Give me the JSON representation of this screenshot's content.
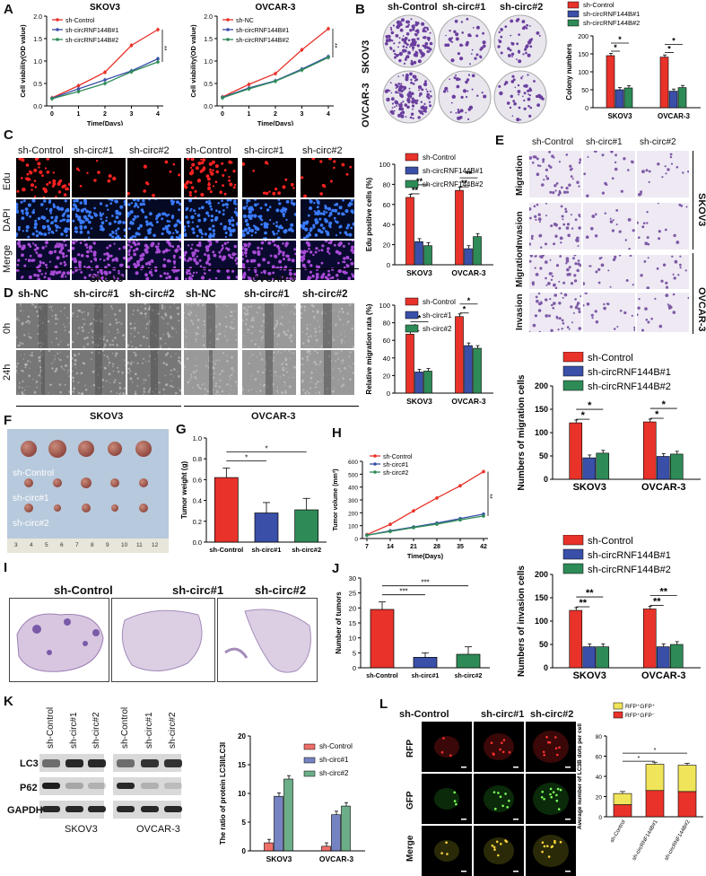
{
  "panels": {
    "A": "A",
    "B": "B",
    "C": "C",
    "D": "D",
    "E": "E",
    "F": "F",
    "G": "G",
    "H": "H",
    "I": "I",
    "J": "J",
    "K": "K",
    "L": "L"
  },
  "colors": {
    "red": "#e8322a",
    "blue": "#3a4fa8",
    "green": "#2e8b57",
    "yellow": "#f0e45a",
    "purple": "#6a3e9e"
  },
  "chart_data": [
    {
      "id": "A1",
      "type": "line",
      "title": "SKOV3",
      "xlabel": "Time(Days)",
      "ylabel": "Cell viability(OD value)",
      "x": [
        0,
        1,
        2,
        3,
        4
      ],
      "ylim": [
        0,
        2.0
      ],
      "yticks": [
        "0.0",
        "0.5",
        "1.0",
        "1.5",
        "2.0"
      ],
      "series": [
        {
          "name": "sh-Control",
          "values": [
            0.18,
            0.45,
            0.75,
            1.35,
            1.7
          ]
        },
        {
          "name": "sh-circRNF144B#1",
          "values": [
            0.17,
            0.38,
            0.58,
            0.78,
            1.05
          ]
        },
        {
          "name": "sh-circRNF144B#2",
          "values": [
            0.16,
            0.32,
            0.5,
            0.76,
            0.98
          ]
        }
      ],
      "annotation": "**"
    },
    {
      "id": "A2",
      "type": "line",
      "title": "OVCAR-3",
      "xlabel": "Time(Days)",
      "ylabel": "Cell viability(OD value)",
      "x": [
        0,
        1,
        2,
        3,
        4
      ],
      "ylim": [
        0,
        2.0
      ],
      "yticks": [
        "0.0",
        "0.5",
        "1.0",
        "1.5",
        "2.0"
      ],
      "series": [
        {
          "name": "sh-NC",
          "values": [
            0.2,
            0.48,
            0.72,
            1.25,
            1.72
          ]
        },
        {
          "name": "sh-circRNF144B#1",
          "values": [
            0.19,
            0.4,
            0.56,
            0.82,
            1.1
          ]
        },
        {
          "name": "sh-circRNF144B#2",
          "values": [
            0.18,
            0.38,
            0.55,
            0.8,
            1.08
          ]
        }
      ],
      "annotation": "**"
    },
    {
      "id": "B",
      "type": "bar",
      "ylabel": "Colony numbers",
      "categories": [
        "SKOV3",
        "OVCAR-3"
      ],
      "ylim": [
        0,
        200
      ],
      "yticks": [
        "0",
        "50",
        "100",
        "150",
        "200"
      ],
      "series": [
        {
          "name": "sh-Control",
          "values": [
            145,
            141
          ]
        },
        {
          "name": "sh-circRNF144B#1",
          "values": [
            50,
            46
          ]
        },
        {
          "name": "sh-circRNF144B#2",
          "values": [
            55,
            56
          ]
        }
      ],
      "sig": [
        "*",
        "*"
      ]
    },
    {
      "id": "C",
      "type": "bar",
      "ylabel": "Edu positive cells (%)",
      "categories": [
        "SKOV3",
        "OVCAR-3"
      ],
      "ylim": [
        0,
        100
      ],
      "yticks": [
        "0",
        "20",
        "40",
        "60",
        "80",
        "100"
      ],
      "series": [
        {
          "name": "sh-Control",
          "values": [
            67,
            74
          ]
        },
        {
          "name": "sh-circRNF144B#1",
          "values": [
            23,
            16
          ]
        },
        {
          "name": "sh-circRNF144B#2",
          "values": [
            19,
            28
          ]
        }
      ],
      "sig": [
        "**",
        "**"
      ]
    },
    {
      "id": "D",
      "type": "bar",
      "ylabel": "Relative migration rata (%)",
      "categories": [
        "SKOV3",
        "OVCAR-3"
      ],
      "ylim": [
        0,
        100
      ],
      "yticks": [
        "0",
        "20",
        "40",
        "60",
        "80",
        "100"
      ],
      "series": [
        {
          "name": "sh-Control",
          "values": [
            67,
            87
          ]
        },
        {
          "name": "sh-circ#1",
          "values": [
            24,
            54
          ]
        },
        {
          "name": "sh-circ#2",
          "values": [
            25,
            51
          ]
        }
      ],
      "sig": [
        "*",
        "*"
      ]
    },
    {
      "id": "E1",
      "type": "bar",
      "ylabel": "Numbers of migration cells",
      "categories": [
        "SKOV3",
        "OVCAR-3"
      ],
      "ylim": [
        0,
        200
      ],
      "yticks": [
        "0",
        "50",
        "100",
        "150",
        "200"
      ],
      "series": [
        {
          "name": "sh-Control",
          "values": [
            121,
            123
          ]
        },
        {
          "name": "sh-circRNF144B#1",
          "values": [
            46,
            49
          ]
        },
        {
          "name": "sh-circRNF144B#2",
          "values": [
            56,
            54
          ]
        }
      ],
      "sig": [
        "*",
        "*"
      ]
    },
    {
      "id": "E2",
      "type": "bar",
      "ylabel": "Numbers of invasion cells",
      "categories": [
        "SKOV3",
        "OVCAR-3"
      ],
      "ylim": [
        0,
        200
      ],
      "yticks": [
        "0",
        "50",
        "100",
        "150",
        "200"
      ],
      "series": [
        {
          "name": "sh-Control",
          "values": [
            123,
            126
          ]
        },
        {
          "name": "sh-circRNF144B#1",
          "values": [
            45,
            45
          ]
        },
        {
          "name": "sh-circRNF144B#2",
          "values": [
            45,
            50
          ]
        }
      ],
      "sig": [
        "**",
        "**"
      ]
    },
    {
      "id": "G",
      "type": "bar",
      "ylabel": "Tumor weight (g)",
      "categories": [
        "sh-Control",
        "sh-circ#1",
        "sh-circ#2"
      ],
      "ylim": [
        0,
        1.0
      ],
      "yticks": [
        "0.0",
        "0.2",
        "0.4",
        "0.6",
        "0.8",
        "1.0"
      ],
      "values": [
        0.62,
        0.28,
        0.31
      ],
      "errors": [
        0.09,
        0.1,
        0.11
      ],
      "sig": [
        "*",
        "*"
      ]
    },
    {
      "id": "H",
      "type": "line",
      "ylabel": "Tumor volume (mm³)",
      "xlabel": "Time(Days)",
      "x": [
        7,
        14,
        21,
        28,
        35,
        42
      ],
      "ylim": [
        0,
        600
      ],
      "yticks": [
        "0",
        "100",
        "200",
        "300",
        "400",
        "500",
        "600"
      ],
      "series": [
        {
          "name": "sh-Control",
          "values": [
            30,
            110,
            215,
            315,
            410,
            520
          ]
        },
        {
          "name": "sh-circ#1",
          "values": [
            25,
            60,
            90,
            120,
            155,
            190
          ]
        },
        {
          "name": "sh-circ#2",
          "values": [
            25,
            55,
            85,
            112,
            145,
            175
          ]
        }
      ],
      "annotation": "**"
    },
    {
      "id": "J",
      "type": "bar",
      "ylabel": "Number of tumors",
      "categories": [
        "sh-Control",
        "sh-circ#1",
        "sh-circ#2"
      ],
      "ylim": [
        0,
        30
      ],
      "yticks": [
        "0",
        "5",
        "10",
        "15",
        "20",
        "25",
        "30"
      ],
      "values": [
        19.5,
        3.5,
        4.5
      ],
      "errors": [
        2.5,
        1.5,
        2.5
      ],
      "sig": [
        "***",
        "***"
      ]
    },
    {
      "id": "K",
      "type": "bar",
      "ylabel": "The ratio of protein LC3II/LC3I",
      "categories": [
        "SKOV3",
        "OVCAR-3"
      ],
      "ylim": [
        0,
        20
      ],
      "yticks": [
        "0",
        "5",
        "10",
        "15",
        "20"
      ],
      "series": [
        {
          "name": "sh-Control",
          "values": [
            1.4,
            0.8
          ]
        },
        {
          "name": "sh-circ#1",
          "values": [
            9.5,
            6.3
          ]
        },
        {
          "name": "sh-circ#2",
          "values": [
            12.5,
            7.8
          ]
        }
      ]
    },
    {
      "id": "L",
      "type": "bar",
      "ylabel": "Average number of LC3B dots per cell",
      "categories": [
        "sh-Control",
        "sh-circRNF144B#1",
        "sh-circRNF144B#2"
      ],
      "ylim": [
        0,
        80
      ],
      "yticks": [
        "0",
        "20",
        "40",
        "60",
        "80"
      ],
      "series": [
        {
          "name": "RFP⁺GFP⁻",
          "values": [
            12,
            26,
            25
          ]
        },
        {
          "name": "RFP⁺GFP⁺",
          "values": [
            11,
            26,
            26
          ]
        }
      ],
      "sig": [
        "*",
        "*"
      ]
    }
  ],
  "images": {
    "B": {
      "cols": [
        "sh-Control",
        "sh-circ#1",
        "sh-circ#2"
      ],
      "rows": [
        "SKOV3",
        "OVCAR-3"
      ]
    },
    "C": {
      "cols": [
        "sh-Control",
        "sh-circ#1",
        "sh-circ#2",
        "sh-Control",
        "sh-circ#1",
        "sh-circ#2"
      ],
      "rows": [
        "Edu",
        "DAPI",
        "Merge"
      ],
      "groups": [
        "SKOV3",
        "OVCAR-3"
      ]
    },
    "D": {
      "cols": [
        "sh-NC",
        "sh-circ#1",
        "sh-circ#2",
        "sh-NC",
        "sh-circ#1",
        "sh-circ#2"
      ],
      "rows": [
        "0h",
        "24h"
      ],
      "groups": [
        "SKOV3",
        "OVCAR-3"
      ]
    },
    "E": {
      "cols": [
        "sh-Control",
        "sh-circ#1",
        "sh-circ#2"
      ],
      "rows": [
        "Migration",
        "Invasion",
        "Migration",
        "Invasion"
      ],
      "groups": [
        "SKOV3",
        "OVCAR-3"
      ]
    },
    "F": {
      "rows": [
        "sh-Control",
        "sh-circ#1",
        "sh-circ#2"
      ],
      "ruler": [
        "3",
        "4",
        "5",
        "6",
        "7",
        "8",
        "9",
        "10",
        "11",
        "12"
      ]
    },
    "I": {
      "cols": [
        "sh-Control",
        "sh-circ#1",
        "sh-circ#2"
      ]
    },
    "K": {
      "cols": [
        "sh-Control",
        "sh-circ#1",
        "sh-circ#2",
        "sh-Control",
        "sh-circ#1",
        "sh-circ#2"
      ],
      "rows": [
        "LC3",
        "P62",
        "GAPDH"
      ],
      "groups": [
        "SKOV3",
        "OVCAR-3"
      ]
    },
    "L": {
      "cols": [
        "sh-Control",
        "sh-circ#1",
        "sh-circ#2"
      ],
      "rows": [
        "RFP",
        "GFP",
        "Merge"
      ]
    }
  }
}
